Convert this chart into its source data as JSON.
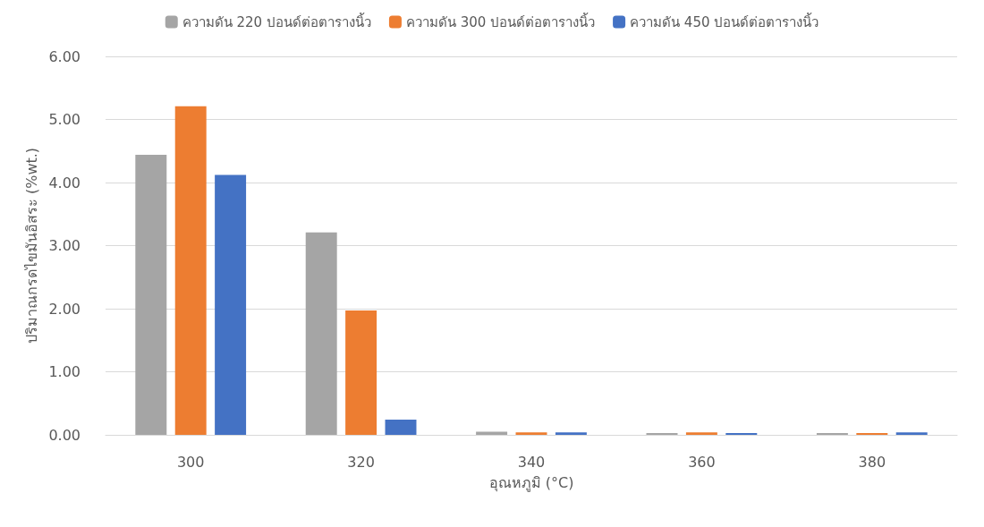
{
  "chart_data": {
    "type": "bar",
    "xlabel": "อุณหภูมิ (°C)",
    "ylabel": "ปริมาณกรดไขมันอิสระ (%wt.)",
    "categories": [
      "300",
      "320",
      "340",
      "360",
      "380"
    ],
    "series": [
      {
        "name": "ความดัน 220 ปอนด์ต่อตารางนิ้ว",
        "color": "#a5a5a5",
        "values": [
          4.44,
          3.21,
          0.05,
          0.03,
          0.03
        ]
      },
      {
        "name": "ความดัน 300 ปอนด์ต่อตารางนิ้ว",
        "color": "#ed7d31",
        "values": [
          5.21,
          1.97,
          0.04,
          0.04,
          0.03
        ]
      },
      {
        "name": "ความดัน 450 ปอนด์ต่อตารางนิ้ว",
        "color": "#4472c4",
        "values": [
          4.12,
          0.24,
          0.04,
          0.03,
          0.04
        ]
      }
    ],
    "ylim": [
      0,
      6
    ],
    "yticks": [
      {
        "value": 0,
        "label": "0.00"
      },
      {
        "value": 1,
        "label": "1.00"
      },
      {
        "value": 2,
        "label": "2.00"
      },
      {
        "value": 3,
        "label": "3.00"
      },
      {
        "value": 4,
        "label": "4.00"
      },
      {
        "value": 5,
        "label": "5.00"
      },
      {
        "value": 6,
        "label": "6.00"
      }
    ],
    "grid": "y",
    "legend": "top"
  }
}
